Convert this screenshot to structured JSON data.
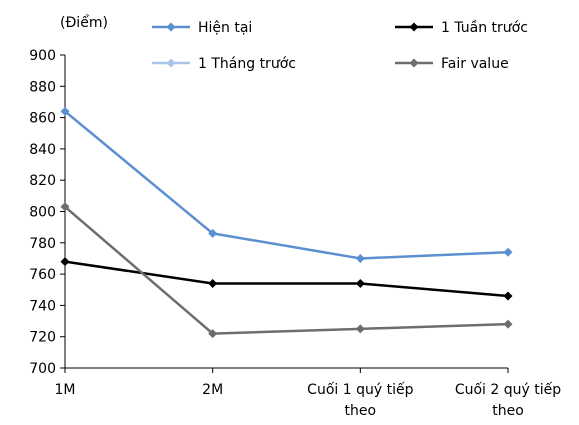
{
  "chart_data": {
    "type": "line",
    "ylabel": "(Điểm)",
    "categories": [
      [
        "1M"
      ],
      [
        "2M"
      ],
      [
        "Cuối 1 quý tiếp",
        "theo"
      ],
      [
        "Cuối 2 quý tiếp",
        "theo"
      ]
    ],
    "ylim": [
      700,
      900
    ],
    "yticks": [
      700,
      720,
      740,
      760,
      780,
      800,
      820,
      840,
      860,
      880,
      900
    ],
    "grid": false,
    "legend_position": "top",
    "series": [
      {
        "name": "Hiện tại",
        "color": "#5b8fcf",
        "values": [
          864,
          786,
          770,
          774
        ],
        "legend_slot": 0
      },
      {
        "name": "1 Tuần trước",
        "color": "#000000",
        "values": [
          768,
          754,
          754,
          746
        ],
        "legend_slot": 1
      },
      {
        "name": "1 Tháng trước",
        "color": "#a9c5ea",
        "values": [
          803,
          722,
          725,
          728
        ],
        "hidden_line": true,
        "legend_slot": 2
      },
      {
        "name": "Fair value",
        "color": "#6d6d6d",
        "values": [
          803,
          722,
          725,
          728
        ],
        "legend_slot": 3
      }
    ]
  }
}
